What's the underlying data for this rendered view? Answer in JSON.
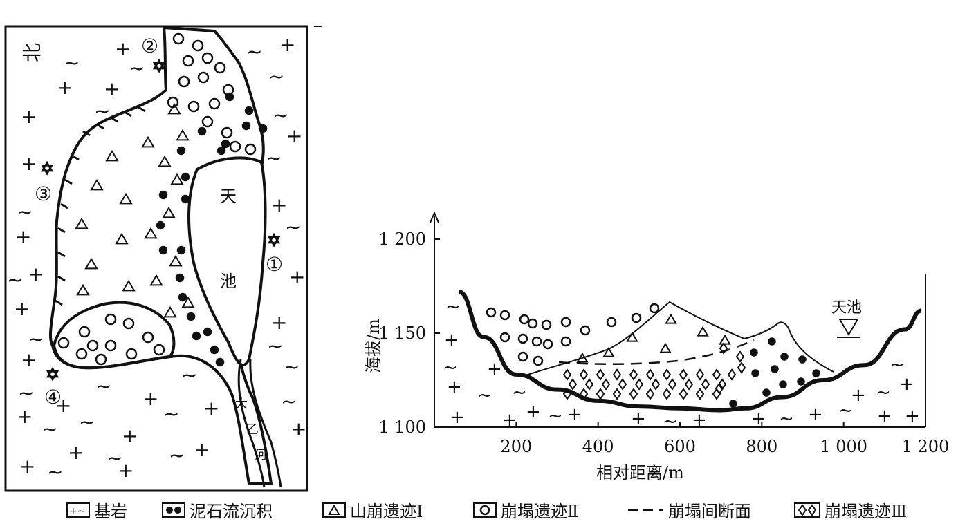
{
  "map": {
    "lake_label_1": "天",
    "lake_label_2": "池",
    "river_label_1": "大",
    "river_label_2": "乙",
    "river_label_3": "河",
    "site_1": "①",
    "site_2": "②",
    "site_3": "③",
    "site_4": "④",
    "corner_mark": "北"
  },
  "profile": {
    "ylabel": "海拔/m",
    "xlabel": "相对距离/m",
    "yticks": [
      "1 200",
      "1 150",
      "1 100"
    ],
    "xticks": [
      "200",
      "400",
      "600",
      "800",
      "1 000",
      "1 200"
    ],
    "lake_label": "天池"
  },
  "chart_data": {
    "type": "line",
    "title": "",
    "xlabel": "相对距离/m",
    "ylabel": "海拔/m",
    "xlim": [
      0,
      1200
    ],
    "ylim": [
      1100,
      1200
    ],
    "series": [
      {
        "x": [
          60,
          120,
          200,
          300,
          400,
          500,
          600,
          700,
          760,
          850,
          950,
          1050,
          1150,
          1190
        ],
        "values": [
          1172,
          1148,
          1128,
          1120,
          1114,
          1111,
          1110,
          1109,
          1110,
          1116,
          1125,
          1133,
          1152,
          1162
        ]
      }
    ]
  },
  "legend": {
    "bedrock": "基岩",
    "debris_flow": "泥石流沉积",
    "landslide": "山崩遗迹Ⅰ",
    "collapse2": "崩塌遗迹Ⅱ",
    "section": "崩塌间断面",
    "collapse3": "崩塌遗迹Ⅲ"
  }
}
